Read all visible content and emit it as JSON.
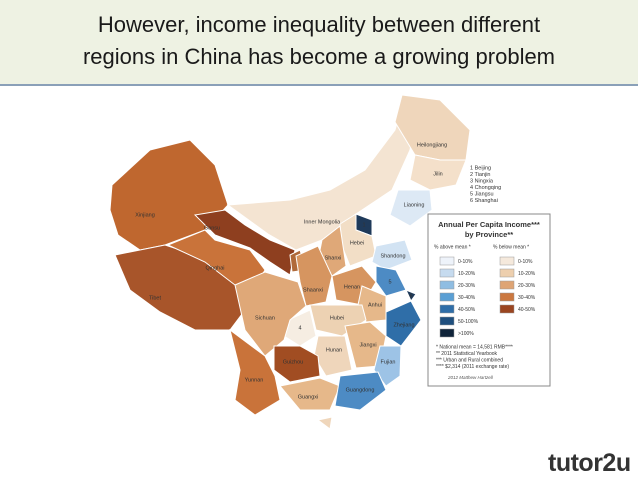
{
  "header": {
    "title_lines": [
      "However, income inequality between different",
      "regions in China has become a growing problem"
    ]
  },
  "map": {
    "provinces": [
      {
        "label": "Xinjiang",
        "color": "#bf672f"
      },
      {
        "label": "Tibet",
        "color": "#a8552a"
      },
      {
        "label": "Qinghai",
        "color": "#c9733a"
      },
      {
        "label": "Gansu",
        "color": "#8e3f1f"
      },
      {
        "label": "Inner Mongolia",
        "color": "#f4e4d2"
      },
      {
        "label": "Heilongjiang",
        "color": "#efd6bb"
      },
      {
        "label": "Jilin",
        "color": "#f4e0ca"
      },
      {
        "label": "Liaoning",
        "color": "#dde9f5"
      },
      {
        "label": "1",
        "color": "#1f3a5a"
      },
      {
        "label": "Hebei",
        "color": "#f2dec6"
      },
      {
        "label": "Shandong",
        "color": "#d2e3f3"
      },
      {
        "label": "Shanxi",
        "color": "#dfa878"
      },
      {
        "label": "3",
        "color": "#b06a3a"
      },
      {
        "label": "Shaanxi",
        "color": "#d69560"
      },
      {
        "label": "Henan",
        "color": "#d69560"
      },
      {
        "label": "5",
        "color": "#4d8bc4"
      },
      {
        "label": "Anhui",
        "color": "#e6b88a"
      },
      {
        "label": "6",
        "color": "#1f3a5a"
      },
      {
        "label": "Zhejiang",
        "color": "#2f6ea8"
      },
      {
        "label": "Hubei",
        "color": "#edd2b3"
      },
      {
        "label": "4",
        "color": "#f6ede2"
      },
      {
        "label": "Sichuan",
        "color": "#dfa878"
      },
      {
        "label": "Hunan",
        "color": "#efd6bb"
      },
      {
        "label": "Jiangxi",
        "color": "#e6b88a"
      },
      {
        "label": "Fujian",
        "color": "#9dc3e6"
      },
      {
        "label": "Guizhou",
        "color": "#a14d22"
      },
      {
        "label": "Yunnan",
        "color": "#c9733a"
      },
      {
        "label": "Guangxi",
        "color": "#e6b88a"
      },
      {
        "label": "Guangdong",
        "color": "#4d8bc4"
      },
      {
        "color": "#efd6bb"
      }
    ],
    "key": [
      "1 Beijing",
      "2 Tianjin",
      "3 Ningxia",
      "4 Chongqing",
      "5 Jiangsu",
      "6 Shanghai"
    ]
  },
  "legend": {
    "title_lines": [
      "Annual Per Capita Income***",
      "by Province**"
    ],
    "above_header": "% above mean *",
    "below_header": "% below mean *",
    "above": [
      {
        "label": "0-10%",
        "color": "#eef3fa"
      },
      {
        "label": "10-20%",
        "color": "#c6dbef"
      },
      {
        "label": "20-30%",
        "color": "#8fbde2"
      },
      {
        "label": "30-40%",
        "color": "#5a9fd4"
      },
      {
        "label": "40-50%",
        "color": "#2f6ea8"
      },
      {
        "label": "50-100%",
        "color": "#1f4f7e"
      },
      {
        "label": ">100%",
        "color": "#10243a"
      }
    ],
    "below": [
      {
        "label": "0-10%",
        "color": "#f5e9dc"
      },
      {
        "label": "10-20%",
        "color": "#edcfae"
      },
      {
        "label": "20-30%",
        "color": "#dea474"
      },
      {
        "label": "30-40%",
        "color": "#cb7840"
      },
      {
        "label": "40-50%",
        "color": "#9a4520"
      }
    ],
    "notes": [
      "* National mean = 14,581 RMB****",
      "** 2011 Statistical Yearbook",
      "*** Urban and Rural combined",
      "**** $2,314 (2011 exchange rate)"
    ],
    "credit": "2012 Matthew Hartzell"
  },
  "logo": "tutor2u"
}
